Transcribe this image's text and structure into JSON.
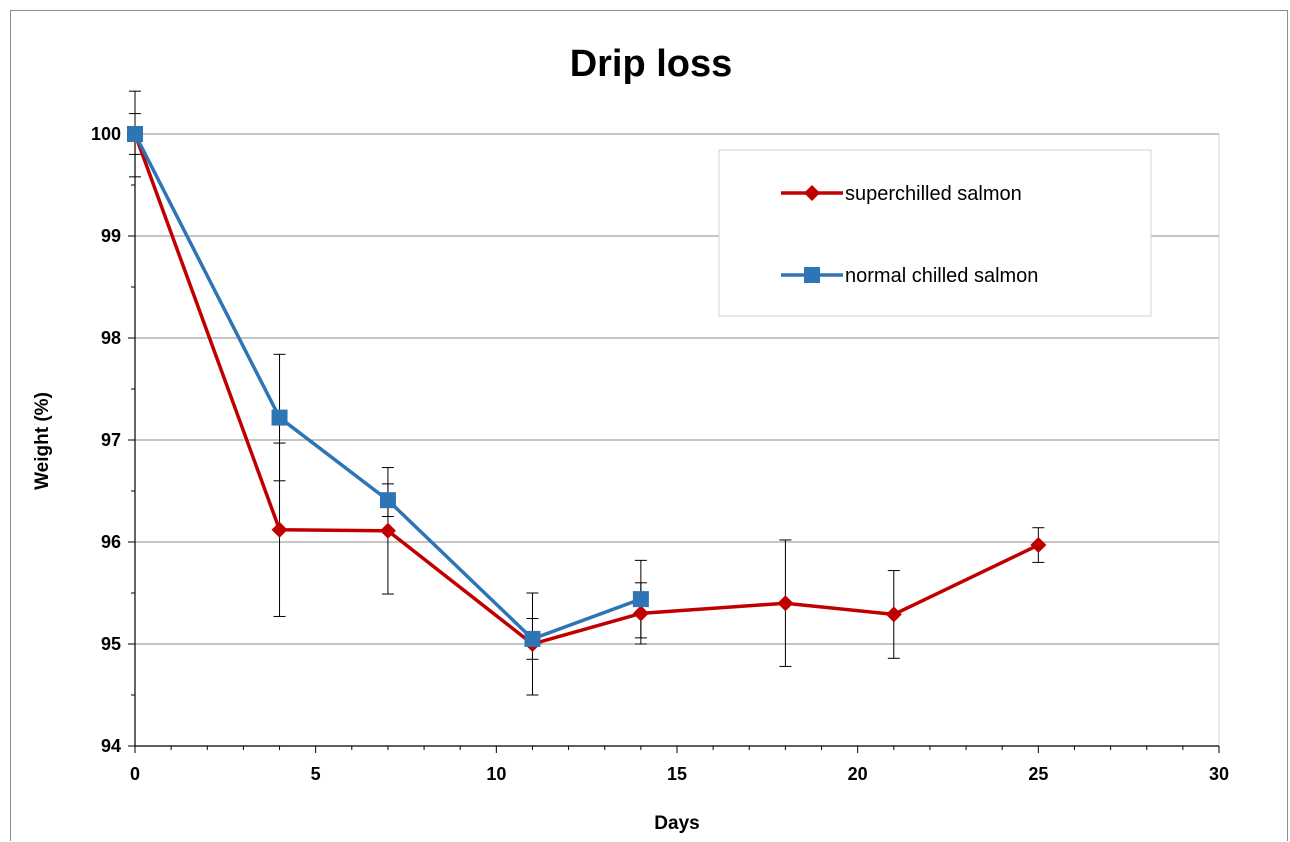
{
  "chart_data": {
    "type": "line",
    "title": "Drip loss",
    "xlabel": "Days",
    "ylabel": "Weight (%)",
    "xlim": [
      0,
      30
    ],
    "ylim": [
      94,
      100
    ],
    "xticks": [
      0,
      5,
      10,
      15,
      20,
      25,
      30
    ],
    "yticks": [
      94,
      95,
      96,
      97,
      98,
      99,
      100
    ],
    "grid": "horizontal major gridlines",
    "legend_position": "top-right",
    "series": [
      {
        "name": "superchilled salmon",
        "color": "#c00000",
        "marker": "diamond",
        "x": [
          0,
          4,
          7,
          11,
          14,
          18,
          21,
          25
        ],
        "y": [
          100,
          96.12,
          96.11,
          95.0,
          95.3,
          95.4,
          95.29,
          95.97
        ],
        "error": [
          0.42,
          0.85,
          0.62,
          0.5,
          0.3,
          0.62,
          0.43,
          0.17
        ]
      },
      {
        "name": "normal chilled salmon",
        "color": "#2e75b6",
        "marker": "square",
        "x": [
          0,
          4,
          7,
          11,
          14
        ],
        "y": [
          100,
          97.22,
          96.41,
          95.05,
          95.44
        ],
        "error": [
          0.2,
          0.62,
          0.16,
          0.2,
          0.38
        ]
      }
    ]
  }
}
